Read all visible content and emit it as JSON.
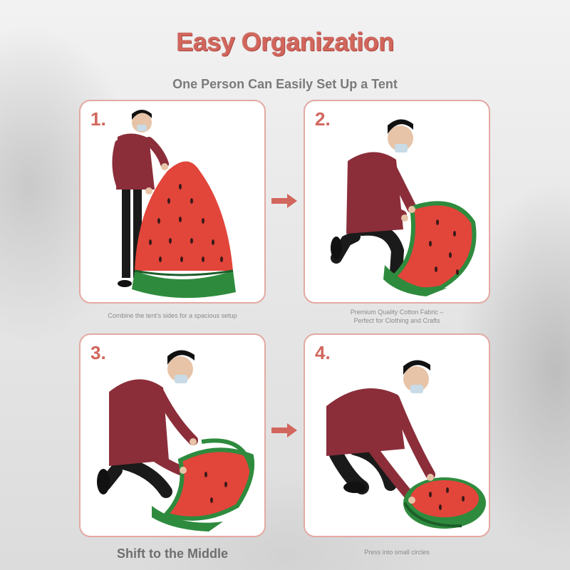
{
  "title": "Easy Organization",
  "subtitle": "One Person Can Easily Set Up a Tent",
  "colors": {
    "accent": "#d2665c",
    "panel_border": "#e3a9a2",
    "hoodie": "#8b2e3a",
    "tent_red": "#e2453a",
    "tent_green": "#2e8b3e"
  },
  "steps": [
    {
      "number": "1.",
      "caption": "Combine the tent's sides for a spacious setup",
      "image": "person-holding-watermelon-tent"
    },
    {
      "number": "2.",
      "caption_line1": "Premium Quality Cotton Fabric –",
      "caption_line2": "Perfect for Clothing and Crafts",
      "image": "person-kneeling-folding-tent"
    },
    {
      "number": "3.",
      "caption": "Shift to the Middle",
      "image": "person-twisting-tent"
    },
    {
      "number": "4.",
      "caption": "Press into small circles",
      "image": "person-squatting-coiling-tent"
    }
  ],
  "arrows": [
    "arrow-right-icon",
    "arrow-right-icon"
  ]
}
